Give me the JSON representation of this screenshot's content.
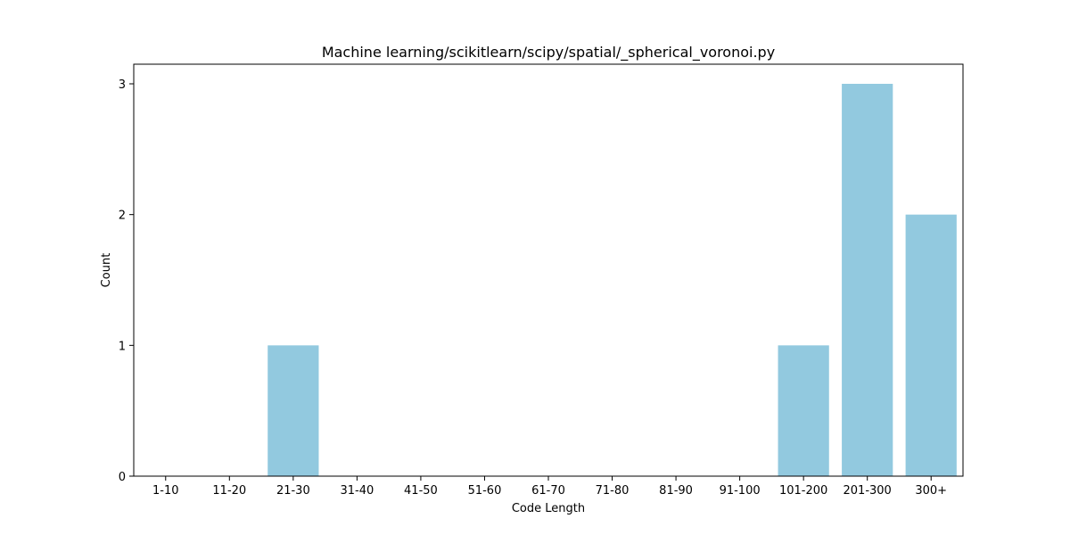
{
  "chart_data": {
    "type": "bar",
    "title": "Machine learning/scikitlearn/scipy/spatial/_spherical_voronoi.py",
    "xlabel": "Code Length",
    "ylabel": "Count",
    "categories": [
      "1-10",
      "11-20",
      "21-30",
      "31-40",
      "41-50",
      "51-60",
      "61-70",
      "71-80",
      "81-90",
      "91-100",
      "101-200",
      "201-300",
      "300+"
    ],
    "values": [
      0,
      0,
      1,
      0,
      0,
      0,
      0,
      0,
      0,
      0,
      1,
      3,
      2
    ],
    "ylim": [
      0,
      3.15
    ],
    "yticks": [
      0,
      1,
      2,
      3
    ],
    "bar_color": "#92c9df",
    "grid": false,
    "legend": "none"
  }
}
